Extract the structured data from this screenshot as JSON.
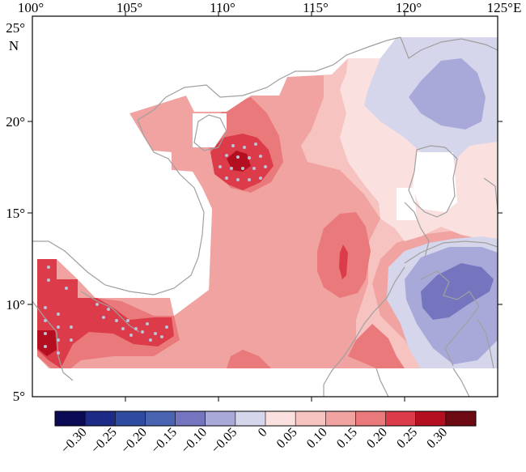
{
  "map": {
    "lon_ticks": [
      "100°",
      "105°",
      "110°",
      "115°",
      "120°",
      "125°E"
    ],
    "lat_ticks": [
      "25°",
      "20°",
      "15°",
      "10°",
      "5°"
    ],
    "north_label": "N",
    "lon_range": [
      100,
      125
    ],
    "lat_range": [
      5,
      25
    ],
    "region": "South China Sea",
    "significance_marker": "dots"
  },
  "colorbar": {
    "tick_labels": [
      "−0.30",
      "−0.25",
      "−0.20",
      "−0.15",
      "−0.10",
      "−0.05",
      "0",
      "0.05",
      "0.10",
      "0.15",
      "0.20",
      "0.25",
      "0.30"
    ],
    "colors": [
      "#0b0b55",
      "#1d2b86",
      "#2f4ba0",
      "#4a63b0",
      "#7474bf",
      "#a9a9d9",
      "#d5d5ec",
      "#fbe0e0",
      "#f6c3c1",
      "#f0a3a0",
      "#e9797a",
      "#dc3c4a",
      "#b40f20",
      "#6e0a14"
    ]
  },
  "colors": {
    "land": "#ffffff",
    "coastline": "#a0a0a0",
    "stipple": "#b8c4d8"
  }
}
